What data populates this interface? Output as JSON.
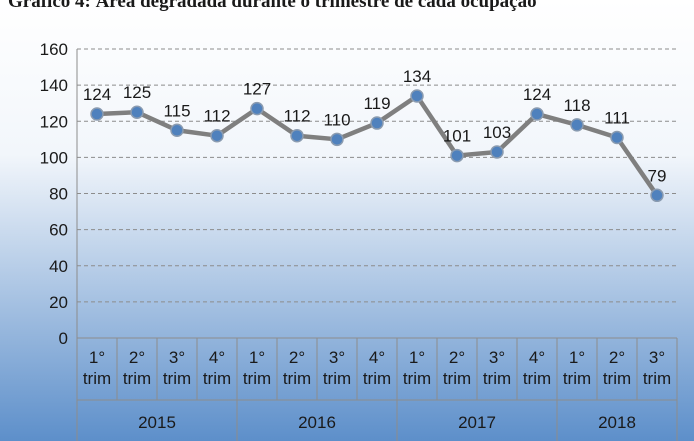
{
  "chart_data": {
    "type": "line",
    "title": "Gráfico 4: Área degradada durante o trimestre de cada ocupação",
    "groups": [
      {
        "name": "2015",
        "categories": [
          "1° trim",
          "2° trim",
          "3° trim",
          "4° trim"
        ]
      },
      {
        "name": "2016",
        "categories": [
          "1° trim",
          "2° trim",
          "3° trim",
          "4° trim"
        ]
      },
      {
        "name": "2017",
        "categories": [
          "1° trim",
          "2° trim",
          "3° trim",
          "4° trim"
        ]
      },
      {
        "name": "2018",
        "categories": [
          "1° trim",
          "2° trim",
          "3° trim"
        ]
      }
    ],
    "values": [
      124,
      125,
      115,
      112,
      127,
      112,
      110,
      119,
      134,
      101,
      103,
      124,
      118,
      111,
      79
    ],
    "color": "#7f7f7f",
    "marker_color": "#4f81bd",
    "ylim": [
      0,
      160
    ],
    "yticks": [
      0,
      20,
      40,
      60,
      80,
      100,
      120,
      140,
      160
    ],
    "grid": true
  }
}
